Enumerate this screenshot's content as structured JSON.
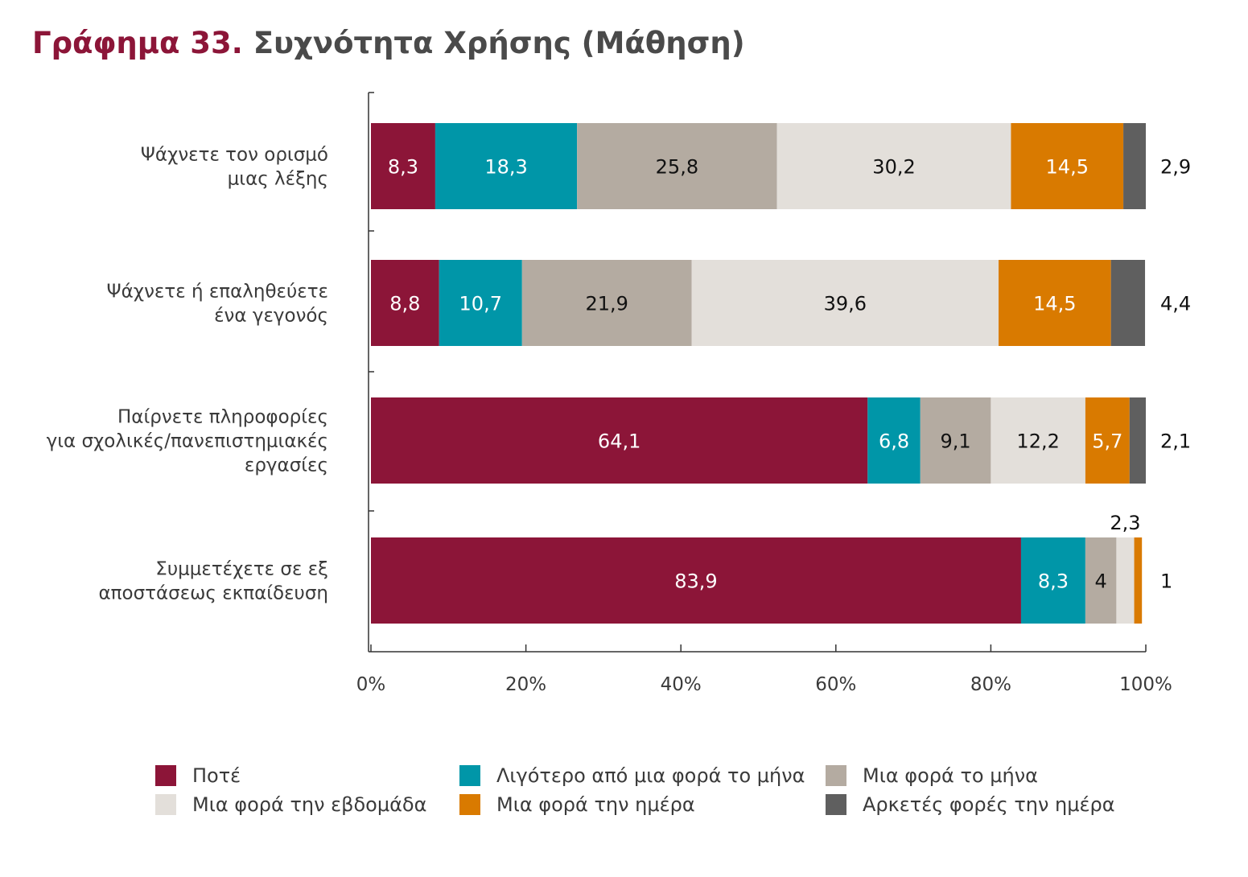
{
  "title": {
    "prefix": "Γράφημα 33.",
    "main": "Συχνότητα Χρήσης (Μάθηση)"
  },
  "colors": {
    "title_accent": "#8c1538",
    "series": [
      "#8c1538",
      "#0096a8",
      "#b4aba1",
      "#e3dfda",
      "#d97a00",
      "#5f5f5f"
    ]
  },
  "chart_data": {
    "type": "bar",
    "orientation": "horizontal",
    "stacked": true,
    "categories": [
      [
        "Ψάχνετε τον ορισμό",
        "μιας λέξης"
      ],
      [
        "Ψάχνετε ή επαληθεύετε",
        "ένα γεγονός"
      ],
      [
        "Παίρνετε πληροφορίες",
        "για σχολικές/πανεπιστημιακές",
        "εργασίες"
      ],
      [
        "Συμμετέχετε σε εξ",
        "αποστάσεως εκπαίδευση"
      ]
    ],
    "series": [
      {
        "name": "Ποτέ",
        "values": [
          8.3,
          8.8,
          64.1,
          83.9
        ],
        "labels": [
          "8,3",
          "8,8",
          "64,1",
          "83,9"
        ]
      },
      {
        "name": "Λιγότερο από μια φορά το μήνα",
        "values": [
          18.3,
          10.7,
          6.8,
          8.3
        ],
        "labels": [
          "18,3",
          "10,7",
          "6,8",
          "8,3"
        ]
      },
      {
        "name": "Μια φορά το μήνα",
        "values": [
          25.8,
          21.9,
          9.1,
          4
        ],
        "labels": [
          "25,8",
          "21,9",
          "9,1",
          "4"
        ]
      },
      {
        "name": "Μια φορά την εβδομάδα",
        "values": [
          30.2,
          39.6,
          12.2,
          2.3
        ],
        "labels": [
          "30,2",
          "39,6",
          "12,2",
          "2,3"
        ]
      },
      {
        "name": "Μια φορά την ημέρα",
        "values": [
          14.5,
          14.5,
          5.7,
          1
        ],
        "labels": [
          "14,5",
          "14,5",
          "5,7",
          "1"
        ]
      },
      {
        "name": "Αρκετές φορές την ημέρα",
        "values": [
          2.9,
          4.4,
          2.1,
          0
        ],
        "labels": [
          "2,9",
          "4,4",
          "2,1",
          ""
        ]
      }
    ],
    "xlim": [
      0,
      100
    ],
    "xticks": [
      "0%",
      "20%",
      "40%",
      "60%",
      "80%",
      "100%"
    ],
    "legend_position": "bottom"
  }
}
